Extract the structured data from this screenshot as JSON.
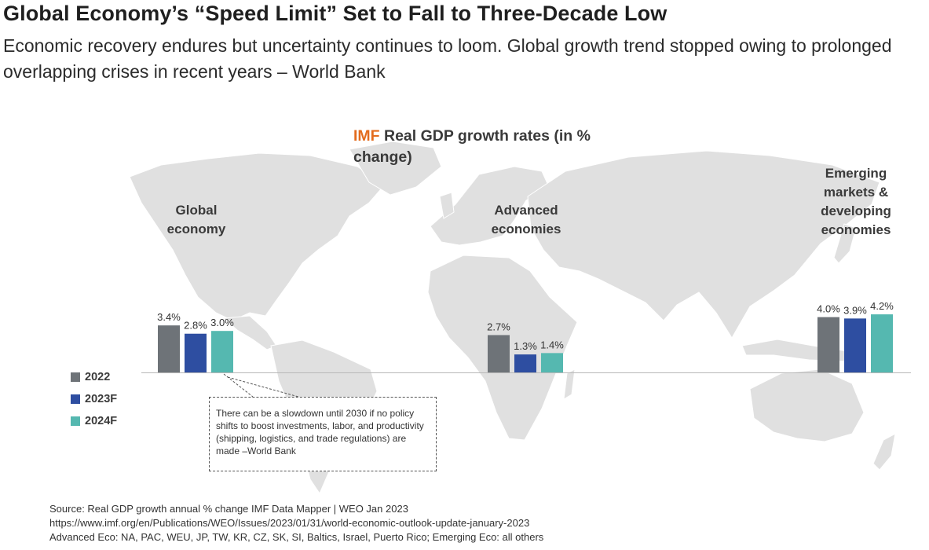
{
  "header": {
    "title": "Global Economy’s “Speed Limit” Set to Fall to Three-Decade Low",
    "subtitle": "Economic recovery endures but uncertainty continues to loom. Global growth trend stopped owing to prolonged overlapping crises in recent years – World Bank"
  },
  "colors": {
    "2022": "#6e7378",
    "2023F": "#2e4ea1",
    "2024F": "#55b8b0",
    "accent": "#e36c1e",
    "map": "#e0e0e0"
  },
  "chart_data": {
    "type": "bar",
    "title_accent": "IMF",
    "title": "Real GDP growth rates (in % change)",
    "categories": [
      "Global economy",
      "Advanced economies",
      "Emerging markets & developing economies"
    ],
    "series": [
      {
        "name": "2022",
        "values": [
          3.4,
          2.7,
          4.0
        ]
      },
      {
        "name": "2023F",
        "values": [
          2.8,
          1.3,
          3.9
        ]
      },
      {
        "name": "2024F",
        "values": [
          3.0,
          1.4,
          4.2
        ]
      }
    ],
    "value_labels": [
      [
        "3.4%",
        "2.8%",
        "3.0%"
      ],
      [
        "2.7%",
        "1.3%",
        "1.4%"
      ],
      [
        "4.0%",
        "3.9%",
        "4.2%"
      ]
    ],
    "legend": [
      "2022",
      "2023F",
      "2024F"
    ],
    "legend_position": "left",
    "grid": false
  },
  "callout": {
    "text": "There can be a slowdown until 2030 if no policy shifts to boost investments, labor, and productivity (shipping, logistics, and trade regulations) are made –World Bank"
  },
  "footer": {
    "source": "Source: Real GDP growth annual % change IMF Data Mapper | WEO Jan 2023",
    "url": "https://www.imf.org/en/Publications/WEO/Issues/2023/01/31/world-economic-outlook-update-january-2023",
    "note": "Advanced Eco: NA, PAC, WEU, JP, TW, KR, CZ, SK, SI, Baltics, Israel, Puerto Rico; Emerging Eco: all others"
  }
}
